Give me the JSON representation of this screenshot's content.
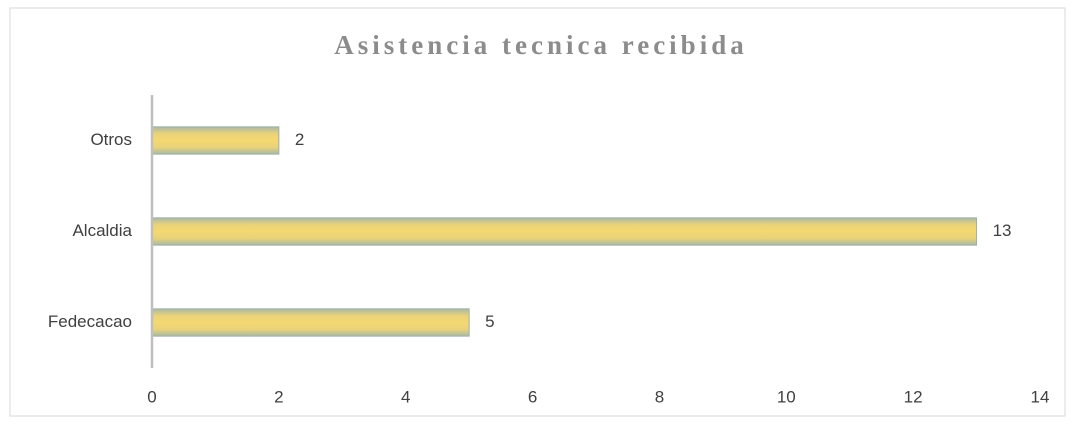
{
  "chart_data": {
    "type": "bar",
    "orientation": "horizontal",
    "title": "Asistencia tecnica recibida",
    "categories": [
      "Fedecacao",
      "Alcaldia",
      "Otros"
    ],
    "values": [
      5,
      13,
      2
    ],
    "color": "#f2d675",
    "xlim": [
      0,
      14
    ],
    "xticks": [
      0,
      2,
      4,
      6,
      8,
      10,
      12,
      14
    ],
    "grid": false
  }
}
